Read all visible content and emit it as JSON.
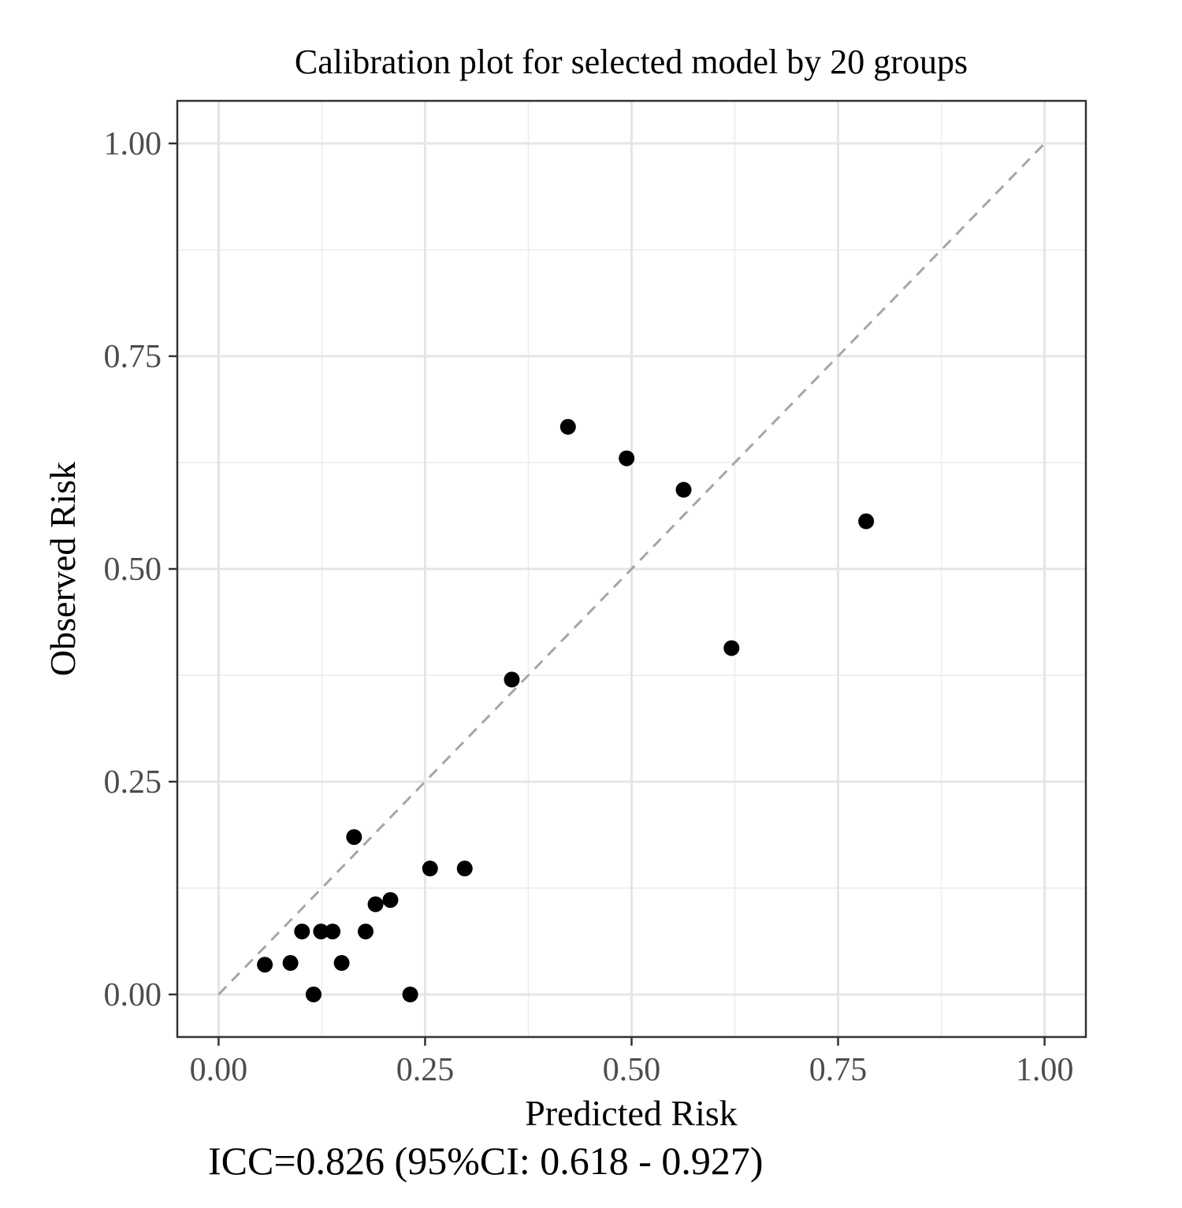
{
  "chart_data": {
    "type": "scatter",
    "title": "Calibration plot for selected model by 20 groups",
    "xlabel": "Predicted Risk",
    "ylabel": "Observed Risk",
    "xlim": [
      -0.05,
      1.05
    ],
    "ylim": [
      -0.05,
      1.05
    ],
    "xticks": [
      0,
      0.25,
      0.5,
      0.75,
      1
    ],
    "xtick_labels": [
      "0.00",
      "0.25",
      "0.50",
      "0.75",
      "1.00"
    ],
    "yticks": [
      0,
      0.25,
      0.5,
      0.75,
      1
    ],
    "ytick_labels": [
      "0.00",
      "0.25",
      "0.50",
      "0.75",
      "1.00"
    ],
    "minor_gridlines": [
      0.125,
      0.375,
      0.625,
      0.875
    ],
    "grid": true,
    "reference_line": {
      "from": [
        0,
        0
      ],
      "to": [
        1,
        1
      ],
      "style": "dashed",
      "color": "#a6a6a6"
    },
    "points": [
      {
        "x": 0.056,
        "y": 0.035
      },
      {
        "x": 0.087,
        "y": 0.037
      },
      {
        "x": 0.101,
        "y": 0.074
      },
      {
        "x": 0.115,
        "y": 0.0
      },
      {
        "x": 0.124,
        "y": 0.074
      },
      {
        "x": 0.138,
        "y": 0.074
      },
      {
        "x": 0.149,
        "y": 0.037
      },
      {
        "x": 0.164,
        "y": 0.185
      },
      {
        "x": 0.178,
        "y": 0.074
      },
      {
        "x": 0.19,
        "y": 0.106
      },
      {
        "x": 0.208,
        "y": 0.111
      },
      {
        "x": 0.232,
        "y": 0.0
      },
      {
        "x": 0.256,
        "y": 0.148
      },
      {
        "x": 0.298,
        "y": 0.148
      },
      {
        "x": 0.355,
        "y": 0.37
      },
      {
        "x": 0.423,
        "y": 0.667
      },
      {
        "x": 0.494,
        "y": 0.63
      },
      {
        "x": 0.563,
        "y": 0.593
      },
      {
        "x": 0.621,
        "y": 0.407
      },
      {
        "x": 0.784,
        "y": 0.556
      }
    ],
    "point_color": "#000000",
    "annotation": "ICC=0.826 (95%CI: 0.618 - 0.927)"
  }
}
